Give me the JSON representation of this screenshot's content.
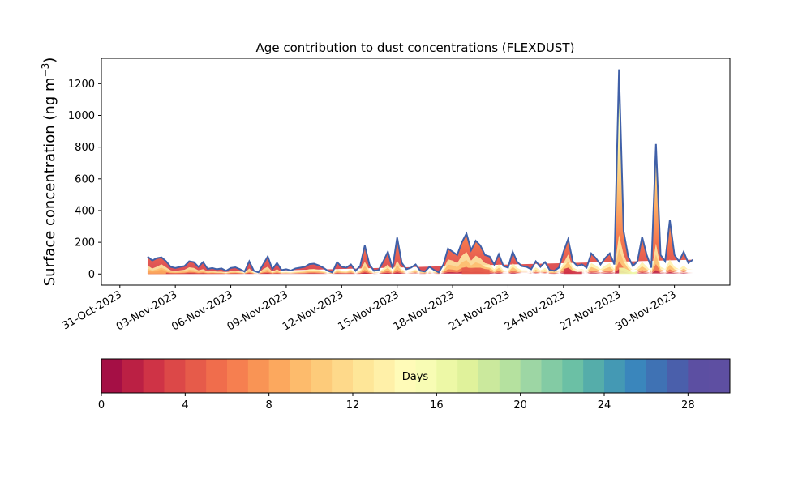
{
  "chart_data": {
    "type": "area",
    "title": "Age contribution to dust concentrations (FLEXDUST)",
    "xlabel": "",
    "ylabel": "Surface concentration (ng m",
    "ylabel_sup": "−3",
    "ylabel_close": ")",
    "xlim": [
      "2023-10-30",
      "2023-12-03"
    ],
    "ylim": [
      -70,
      1360
    ],
    "y_ticks": [
      0,
      200,
      400,
      600,
      800,
      1000,
      1200
    ],
    "x_ticks": [
      "31-Oct-2023",
      "03-Nov-2023",
      "06-Nov-2023",
      "09-Nov-2023",
      "12-Nov-2023",
      "15-Nov-2023",
      "18-Nov-2023",
      "21-Nov-2023",
      "24-Nov-2023",
      "27-Nov-2023",
      "30-Nov-2023"
    ],
    "x_tick_dates": [
      "2023-10-31",
      "2023-11-03",
      "2023-11-06",
      "2023-11-09",
      "2023-11-12",
      "2023-11-15",
      "2023-11-18",
      "2023-11-21",
      "2023-11-24",
      "2023-11-27",
      "2023-11-30"
    ],
    "grid": false,
    "series": [
      {
        "x": [
          "2023-11-01 12:00",
          "2023-11-01 18:00",
          "2023-11-02 00:00",
          "2023-11-02 06:00",
          "2023-11-02 12:00",
          "2023-11-02 18:00",
          "2023-11-03 00:00",
          "2023-11-03 06:00",
          "2023-11-03 12:00",
          "2023-11-03 18:00",
          "2023-11-04 00:00",
          "2023-11-04 06:00",
          "2023-11-04 12:00",
          "2023-11-04 18:00",
          "2023-11-05 00:00",
          "2023-11-05 06:00",
          "2023-11-05 12:00",
          "2023-11-05 18:00",
          "2023-11-06 00:00",
          "2023-11-06 06:00",
          "2023-11-06 12:00",
          "2023-11-06 18:00",
          "2023-11-07 00:00",
          "2023-11-07 06:00",
          "2023-11-07 12:00",
          "2023-11-07 18:00",
          "2023-11-08 00:00",
          "2023-11-08 06:00",
          "2023-11-08 12:00",
          "2023-11-08 18:00",
          "2023-11-09 00:00",
          "2023-11-09 06:00",
          "2023-11-09 12:00",
          "2023-11-09 18:00",
          "2023-11-10 00:00",
          "2023-11-10 06:00",
          "2023-11-10 12:00",
          "2023-11-10 18:00",
          "2023-11-11 00:00",
          "2023-11-11 06:00",
          "2023-11-11 12:00",
          "2023-11-11 18:00",
          "2023-11-12 00:00",
          "2023-11-12 06:00",
          "2023-11-12 12:00",
          "2023-11-12 18:00",
          "2023-11-13 00:00",
          "2023-11-13 06:00",
          "2023-11-13 12:00",
          "2023-11-13 18:00",
          "2023-11-14 00:00",
          "2023-11-14 06:00",
          "2023-11-14 12:00",
          "2023-11-14 18:00",
          "2023-11-15 00:00",
          "2023-11-15 06:00",
          "2023-11-15 12:00",
          "2023-11-15 18:00",
          "2023-11-16 00:00",
          "2023-11-16 06:00",
          "2023-11-16 12:00",
          "2023-11-16 18:00",
          "2023-11-17 00:00",
          "2023-11-17 06:00",
          "2023-11-17 12:00",
          "2023-11-17 18:00",
          "2023-11-18 00:00",
          "2023-11-18 06:00",
          "2023-11-18 12:00",
          "2023-11-18 18:00",
          "2023-11-19 00:00",
          "2023-11-19 06:00",
          "2023-11-19 12:00",
          "2023-11-19 18:00",
          "2023-11-20 00:00",
          "2023-11-20 06:00",
          "2023-11-20 12:00",
          "2023-11-20 18:00",
          "2023-11-21 00:00",
          "2023-11-21 06:00",
          "2023-11-21 12:00",
          "2023-11-21 18:00",
          "2023-11-22 00:00",
          "2023-11-22 06:00",
          "2023-11-22 12:00",
          "2023-11-22 18:00",
          "2023-11-23 00:00",
          "2023-11-23 06:00",
          "2023-11-23 12:00",
          "2023-11-23 18:00",
          "2023-11-24 00:00",
          "2023-11-24 06:00",
          "2023-11-24 12:00",
          "2023-11-24 18:00",
          "2023-11-25 00:00",
          "2023-11-25 06:00",
          "2023-11-25 12:00",
          "2023-11-25 18:00",
          "2023-11-26 00:00",
          "2023-11-26 06:00",
          "2023-11-26 12:00",
          "2023-11-26 18:00",
          "2023-11-27 00:00",
          "2023-11-27 06:00",
          "2023-11-27 12:00",
          "2023-11-27 18:00",
          "2023-11-28 00:00",
          "2023-11-28 06:00",
          "2023-11-28 12:00",
          "2023-11-28 18:00",
          "2023-11-29 00:00",
          "2023-11-29 06:00",
          "2023-11-29 12:00",
          "2023-11-29 18:00",
          "2023-11-30 00:00",
          "2023-11-30 06:00",
          "2023-11-30 12:00",
          "2023-11-30 18:00",
          "2023-12-01 00:00",
          "2023-12-01 06:00",
          "2023-12-01 12:00"
        ],
        "total": [
          110,
          85,
          100,
          105,
          80,
          45,
          38,
          45,
          50,
          80,
          75,
          45,
          75,
          32,
          38,
          30,
          35,
          20,
          38,
          42,
          30,
          15,
          80,
          20,
          10,
          60,
          110,
          30,
          70,
          25,
          30,
          22,
          35,
          40,
          45,
          62,
          65,
          55,
          40,
          20,
          10,
          75,
          45,
          40,
          60,
          20,
          50,
          180,
          60,
          20,
          25,
          80,
          140,
          35,
          230,
          70,
          30,
          40,
          60,
          20,
          15,
          45,
          25,
          10,
          60,
          160,
          140,
          120,
          200,
          255,
          150,
          210,
          180,
          120,
          110,
          60,
          125,
          50,
          40,
          140,
          75,
          50,
          45,
          30,
          80,
          45,
          75,
          25,
          20,
          40,
          140,
          220,
          80,
          50,
          60,
          40,
          130,
          100,
          60,
          100,
          130,
          60,
          1290,
          270,
          110,
          50,
          80,
          235,
          120,
          40,
          820,
          120,
          80,
          340,
          120,
          80,
          140,
          70,
          90
        ],
        "fresh": [
          70,
          45,
          60,
          80,
          55,
          30,
          25,
          30,
          35,
          55,
          50,
          30,
          40,
          20,
          25,
          20,
          20,
          12,
          25,
          28,
          20,
          10,
          45,
          12,
          6,
          40,
          60,
          18,
          40,
          15,
          18,
          15,
          20,
          25,
          30,
          40,
          42,
          35,
          25,
          12,
          6,
          40,
          28,
          25,
          38,
          12,
          30,
          100,
          35,
          12,
          15,
          45,
          80,
          20,
          110,
          40,
          18,
          25,
          38,
          12,
          8,
          28,
          15,
          6,
          40,
          120,
          110,
          90,
          150,
          180,
          110,
          150,
          130,
          90,
          80,
          40,
          80,
          30,
          25,
          90,
          50,
          30,
          30,
          20,
          55,
          30,
          50,
          15,
          12,
          25,
          90,
          160,
          55,
          35,
          40,
          25,
          90,
          70,
          40,
          70,
          90,
          40,
          320,
          160,
          70,
          30,
          50,
          100,
          60,
          20,
          250,
          60,
          40,
          120,
          60,
          40,
          70,
          35,
          40
        ],
        "dense_age_bands": [
          {
            "start": "2023-11-01 12:00",
            "end": "2023-11-02 12:00",
            "days": 8
          },
          {
            "start": "2023-11-18 12:00",
            "end": "2023-11-20 00:00",
            "days": 4
          },
          {
            "start": "2023-11-24 00:00",
            "end": "2023-11-25 00:00",
            "days": 2
          },
          {
            "start": "2023-11-27 00:00",
            "end": "2023-11-28 00:00",
            "days": 16
          }
        ]
      }
    ],
    "colorbar": {
      "label": "Days",
      "min": 0,
      "max": 30,
      "ticks": [
        0,
        4,
        8,
        12,
        16,
        20,
        24,
        28
      ],
      "colors": [
        "#a50f45",
        "#bb2044",
        "#cf3346",
        "#dc4848",
        "#e65b4a",
        "#f06d4c",
        "#f67f50",
        "#f99455",
        "#fca85e",
        "#fdbb6c",
        "#fdcb7a",
        "#fed98a",
        "#fee698",
        "#fff0a8",
        "#fffbb8",
        "#f8fcb4",
        "#edf8a6",
        "#e0f29b",
        "#cbe99d",
        "#b5e19f",
        "#9dd6a4",
        "#83cba4",
        "#6bc0a5",
        "#55adaa",
        "#4499b4",
        "#3a86bc",
        "#3f72b4",
        "#4a5fab",
        "#5c4fa2",
        "#5e4fa2"
      ]
    }
  }
}
